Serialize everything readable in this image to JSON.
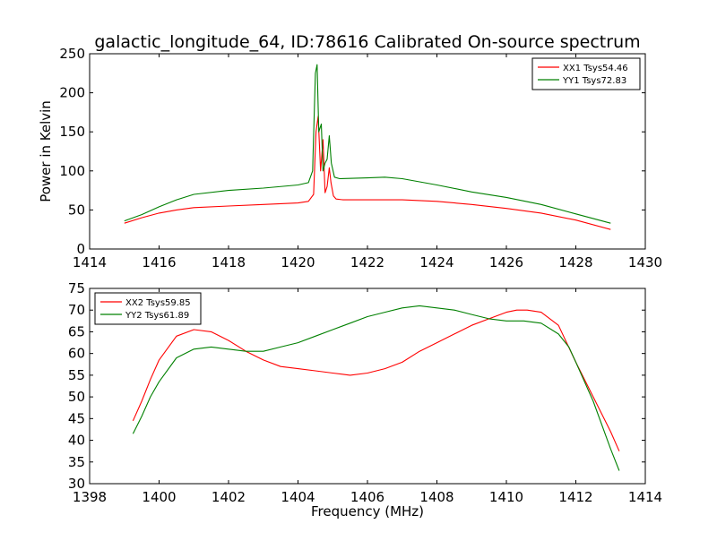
{
  "chart_data": [
    {
      "type": "line",
      "title": "galactic_longitude_64, ID:78616 Calibrated On-source spectrum",
      "xlabel": "",
      "ylabel": "Power in Kelvin",
      "xlim": [
        1414,
        1430
      ],
      "ylim": [
        0,
        250
      ],
      "xticks": [
        1414,
        1416,
        1418,
        1420,
        1422,
        1424,
        1426,
        1428,
        1430
      ],
      "yticks": [
        0,
        50,
        100,
        150,
        200,
        250
      ],
      "legend_position": "top-right",
      "series": [
        {
          "name": "XX1 Tsys54.46",
          "color": "#ff0000",
          "x": [
            1415.0,
            1415.5,
            1416.0,
            1416.5,
            1417.0,
            1418.0,
            1419.0,
            1420.0,
            1420.3,
            1420.45,
            1420.52,
            1420.58,
            1420.65,
            1420.72,
            1420.78,
            1420.84,
            1420.9,
            1420.95,
            1421.02,
            1421.1,
            1421.3,
            1422.0,
            1423.0,
            1424.0,
            1425.0,
            1426.0,
            1427.0,
            1428.0,
            1429.0
          ],
          "y": [
            33,
            40,
            46,
            50,
            53,
            55,
            57,
            59,
            61,
            70,
            150,
            170,
            100,
            140,
            72,
            80,
            104,
            85,
            68,
            64,
            63,
            63,
            63,
            61,
            57,
            52,
            46,
            37,
            25
          ]
        },
        {
          "name": "YY1 Tsys72.83",
          "color": "#008000",
          "x": [
            1415.0,
            1415.5,
            1416.0,
            1416.5,
            1417.0,
            1418.0,
            1419.0,
            1420.0,
            1420.3,
            1420.42,
            1420.5,
            1420.55,
            1420.6,
            1420.67,
            1420.72,
            1420.78,
            1420.84,
            1420.9,
            1420.96,
            1421.05,
            1421.2,
            1422.0,
            1422.5,
            1423.0,
            1424.0,
            1425.0,
            1426.0,
            1427.0,
            1428.0,
            1429.0
          ],
          "y": [
            36,
            44,
            54,
            63,
            70,
            75,
            78,
            82,
            85,
            100,
            225,
            236,
            150,
            160,
            100,
            110,
            115,
            145,
            110,
            92,
            90,
            91,
            92,
            90,
            82,
            73,
            66,
            57,
            45,
            33
          ]
        }
      ]
    },
    {
      "type": "line",
      "title": "",
      "xlabel": "Frequency (MHz)",
      "ylabel": "",
      "xlim": [
        1398,
        1414
      ],
      "ylim": [
        30,
        75
      ],
      "xticks": [
        1398,
        1400,
        1402,
        1404,
        1406,
        1408,
        1410,
        1412,
        1414
      ],
      "yticks": [
        30,
        35,
        40,
        45,
        50,
        55,
        60,
        65,
        70,
        75
      ],
      "legend_position": "top-left",
      "series": [
        {
          "name": "XX2 Tsys59.85",
          "color": "#ff0000",
          "x": [
            1399.25,
            1399.5,
            1399.75,
            1400.0,
            1400.5,
            1401.0,
            1401.5,
            1402.0,
            1402.5,
            1403.0,
            1403.5,
            1404.0,
            1404.5,
            1405.0,
            1405.5,
            1406.0,
            1406.5,
            1407.0,
            1407.5,
            1408.0,
            1408.5,
            1409.0,
            1409.5,
            1410.0,
            1410.3,
            1410.6,
            1411.0,
            1411.5,
            1412.0,
            1412.5,
            1413.0,
            1413.25
          ],
          "y": [
            44.5,
            49,
            54,
            58.5,
            64,
            65.5,
            65,
            63,
            60.5,
            58.5,
            57,
            56.5,
            56,
            55.5,
            55,
            55.5,
            56.5,
            58,
            60.5,
            62.5,
            64.5,
            66.5,
            68,
            69.5,
            70,
            70,
            69.5,
            66.5,
            58,
            50,
            42,
            37.5
          ]
        },
        {
          "name": "YY2 Tsys61.89",
          "color": "#008000",
          "x": [
            1399.25,
            1399.5,
            1399.75,
            1400.0,
            1400.5,
            1401.0,
            1401.5,
            1402.0,
            1402.5,
            1403.0,
            1403.5,
            1404.0,
            1404.5,
            1405.0,
            1405.5,
            1406.0,
            1406.5,
            1407.0,
            1407.5,
            1408.0,
            1408.5,
            1409.0,
            1409.5,
            1410.0,
            1410.5,
            1411.0,
            1411.5,
            1411.8,
            1412.0,
            1412.5,
            1413.0,
            1413.25
          ],
          "y": [
            41.5,
            45.5,
            50,
            53.5,
            59,
            61,
            61.5,
            61,
            60.5,
            60.5,
            61.5,
            62.5,
            64,
            65.5,
            67,
            68.5,
            69.5,
            70.5,
            71,
            70.5,
            70,
            69,
            68,
            67.5,
            67.5,
            67,
            64.5,
            61.5,
            58,
            49,
            38,
            33
          ]
        }
      ]
    }
  ]
}
